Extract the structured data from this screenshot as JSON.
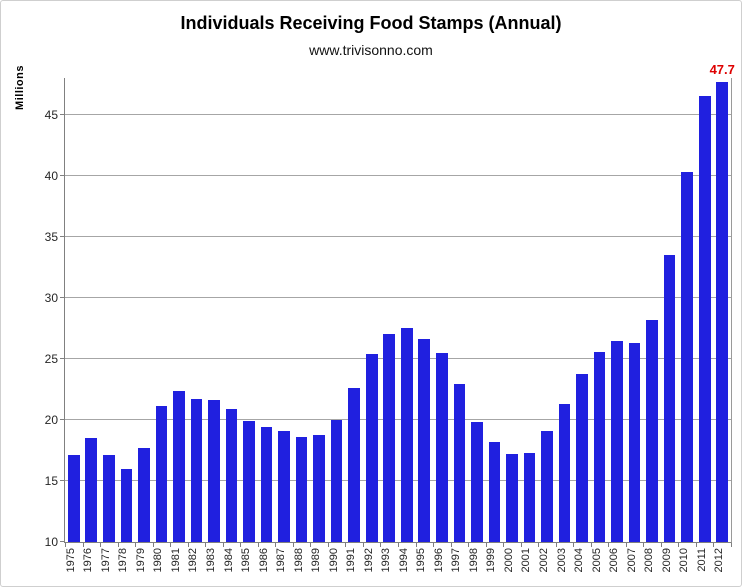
{
  "page": {
    "background": "#FFFFFF",
    "frame_border_color": "#CFCFCF"
  },
  "chart_data": {
    "type": "bar",
    "title": "Individuals Receiving Food Stamps (Annual)",
    "subtitle": "www.trivisonno.com",
    "xlabel": "",
    "ylabel": "Millions",
    "categories": [
      "1975",
      "1976",
      "1977",
      "1978",
      "1979",
      "1980",
      "1981",
      "1982",
      "1983",
      "1984",
      "1985",
      "1986",
      "1987",
      "1988",
      "1989",
      "1990",
      "1991",
      "1992",
      "1993",
      "1994",
      "1995",
      "1996",
      "1997",
      "1998",
      "1999",
      "2000",
      "2001",
      "2002",
      "2003",
      "2004",
      "2005",
      "2006",
      "2007",
      "2008",
      "2009",
      "2010",
      "2011",
      "2012"
    ],
    "values": [
      17.1,
      18.5,
      17.1,
      16.0,
      17.7,
      21.1,
      22.4,
      21.7,
      21.6,
      20.9,
      19.9,
      19.4,
      19.1,
      18.6,
      18.8,
      20.0,
      22.6,
      25.4,
      27.0,
      27.5,
      26.6,
      25.5,
      22.9,
      19.8,
      18.2,
      17.2,
      17.3,
      19.1,
      21.3,
      23.8,
      25.6,
      26.5,
      26.3,
      28.2,
      33.5,
      40.3,
      46.5,
      47.7
    ],
    "series_name": "Individuals Receiving Food Stamps",
    "ylim": [
      10,
      48
    ],
    "yticks": [
      10,
      15,
      20,
      25,
      30,
      35,
      40,
      45
    ],
    "grid": true,
    "legend_position": "none",
    "bar_color": "#2020DF",
    "gridline_color": "#A6A6A6",
    "axis_color": "#808080",
    "tick_label_color": "#262626",
    "annotation": {
      "text": "47.7",
      "color": "#DE0000",
      "category": "2012"
    }
  }
}
